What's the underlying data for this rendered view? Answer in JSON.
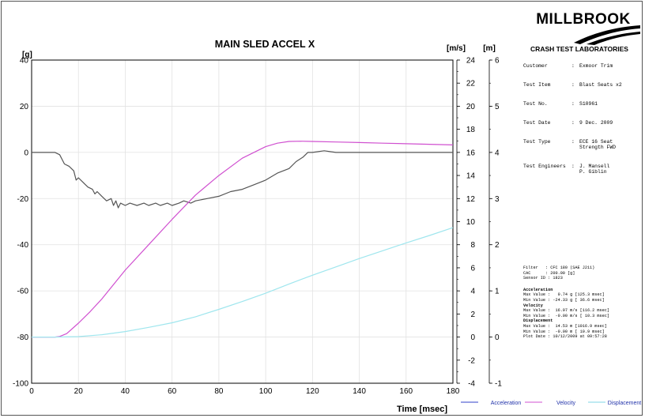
{
  "brand": {
    "logo_text": "MILLBROOK",
    "lab_name": "CRASH TEST LABORATORIES"
  },
  "test_info": [
    {
      "label": "Customer",
      "value": "Exmoor Trim"
    },
    {
      "label": "Test Item",
      "value": "Blast Seats x2"
    },
    {
      "label": "Test No.",
      "value": "S10961"
    },
    {
      "label": "Test Date",
      "value": "9 Dec. 2009"
    },
    {
      "label": "Test Type",
      "value": "ECE 16 Seat",
      "value2": "Strength FWD"
    },
    {
      "label": "Test Engineers",
      "value": "J. Mansell",
      "value2": "P. Giblin"
    }
  ],
  "summary": {
    "filter_lines": [
      "Filter   : CFC 180 (SAE J211)",
      "CAC      : 200.00 [g]",
      "Sensor ID : 1823"
    ],
    "sections": [
      {
        "heading": "Acceleration",
        "lines": [
          "Max Value :   0.74 g [125.3 msec]",
          "Min Value : -24.33 g [ 36.6 msec]"
        ]
      },
      {
        "heading": "Velocity",
        "lines": [
          "Max Value :  16.97 m/s [116.2 msec]",
          "Min Value :  -0.00 m/s [ 10.3 msec]"
        ]
      },
      {
        "heading": "Displacement",
        "lines": [
          "Max Value :  14.53 m [1016.9 msec]",
          "Min Value :  -0.00 m [ 10.9 msec]",
          "Plot Date : 10/12/2009 at 09:57:28"
        ]
      }
    ]
  },
  "chart_data": {
    "type": "line",
    "title": "MAIN SLED ACCEL X",
    "xlabel": "Time [msec]",
    "xlim": [
      0,
      180
    ],
    "x_ticks": [
      0,
      20,
      40,
      60,
      80,
      100,
      120,
      140,
      160,
      180
    ],
    "grid": true,
    "legend_position": "bottom",
    "axes": {
      "accel": {
        "unit": "[g]",
        "lim": [
          -100,
          40
        ],
        "ticks": [
          40,
          20,
          0,
          -20,
          -40,
          -60,
          -80,
          -100
        ]
      },
      "velocity": {
        "unit": "[m/s]",
        "lim": [
          -4,
          24
        ],
        "ticks": [
          24,
          22,
          20,
          18,
          16,
          14,
          12,
          10,
          8,
          6,
          4,
          2,
          0,
          -2,
          -4
        ]
      },
      "displacement": {
        "unit": "[m]",
        "lim": [
          -1,
          6
        ],
        "ticks": [
          6,
          5,
          4,
          3,
          2,
          1,
          0,
          -1
        ]
      }
    },
    "series": [
      {
        "name": "Acceleration",
        "axis": "accel",
        "color": "#555555",
        "x": [
          0,
          10,
          12,
          13,
          14,
          16,
          18,
          19,
          20,
          22,
          24,
          26,
          27,
          28,
          30,
          32,
          34,
          35,
          36,
          37,
          38,
          40,
          42,
          45,
          48,
          50,
          53,
          55,
          58,
          60,
          63,
          65,
          68,
          70,
          75,
          80,
          85,
          90,
          95,
          100,
          105,
          110,
          113,
          116,
          118,
          120,
          125,
          130,
          140,
          150,
          160,
          170,
          180
        ],
        "y": [
          0,
          0,
          -1,
          -3,
          -5,
          -6,
          -8,
          -12,
          -11,
          -13,
          -15,
          -16,
          -18,
          -17,
          -19,
          -21,
          -20,
          -23,
          -21,
          -24,
          -22,
          -23,
          -22,
          -23,
          -22,
          -23,
          -22,
          -23,
          -22,
          -23,
          -22,
          -21,
          -22,
          -21,
          -20,
          -19,
          -17,
          -16,
          -14,
          -12,
          -9,
          -7,
          -4,
          -2,
          0,
          0,
          0.7,
          0,
          0,
          0,
          0,
          0,
          0
        ]
      },
      {
        "name": "Velocity",
        "axis": "velocity",
        "color": "#d050d0",
        "x": [
          0,
          10,
          12,
          15,
          20,
          25,
          30,
          40,
          50,
          60,
          70,
          80,
          90,
          100,
          105,
          110,
          115,
          120,
          130,
          140,
          150,
          160,
          170,
          180
        ],
        "y": [
          0,
          0,
          0.05,
          0.3,
          1.2,
          2.2,
          3.3,
          5.8,
          8.0,
          10.2,
          12.3,
          14.0,
          15.5,
          16.5,
          16.8,
          16.95,
          16.97,
          16.95,
          16.9,
          16.85,
          16.8,
          16.75,
          16.7,
          16.65
        ]
      },
      {
        "name": "Displacement",
        "axis": "displacement",
        "color": "#9fe6ee",
        "x": [
          0,
          10,
          20,
          30,
          40,
          50,
          60,
          70,
          80,
          90,
          100,
          110,
          120,
          130,
          140,
          150,
          160,
          170,
          180
        ],
        "y": [
          0,
          0,
          0.01,
          0.05,
          0.12,
          0.21,
          0.31,
          0.44,
          0.6,
          0.77,
          0.95,
          1.15,
          1.34,
          1.52,
          1.7,
          1.87,
          2.04,
          2.2,
          2.37
        ]
      }
    ]
  }
}
